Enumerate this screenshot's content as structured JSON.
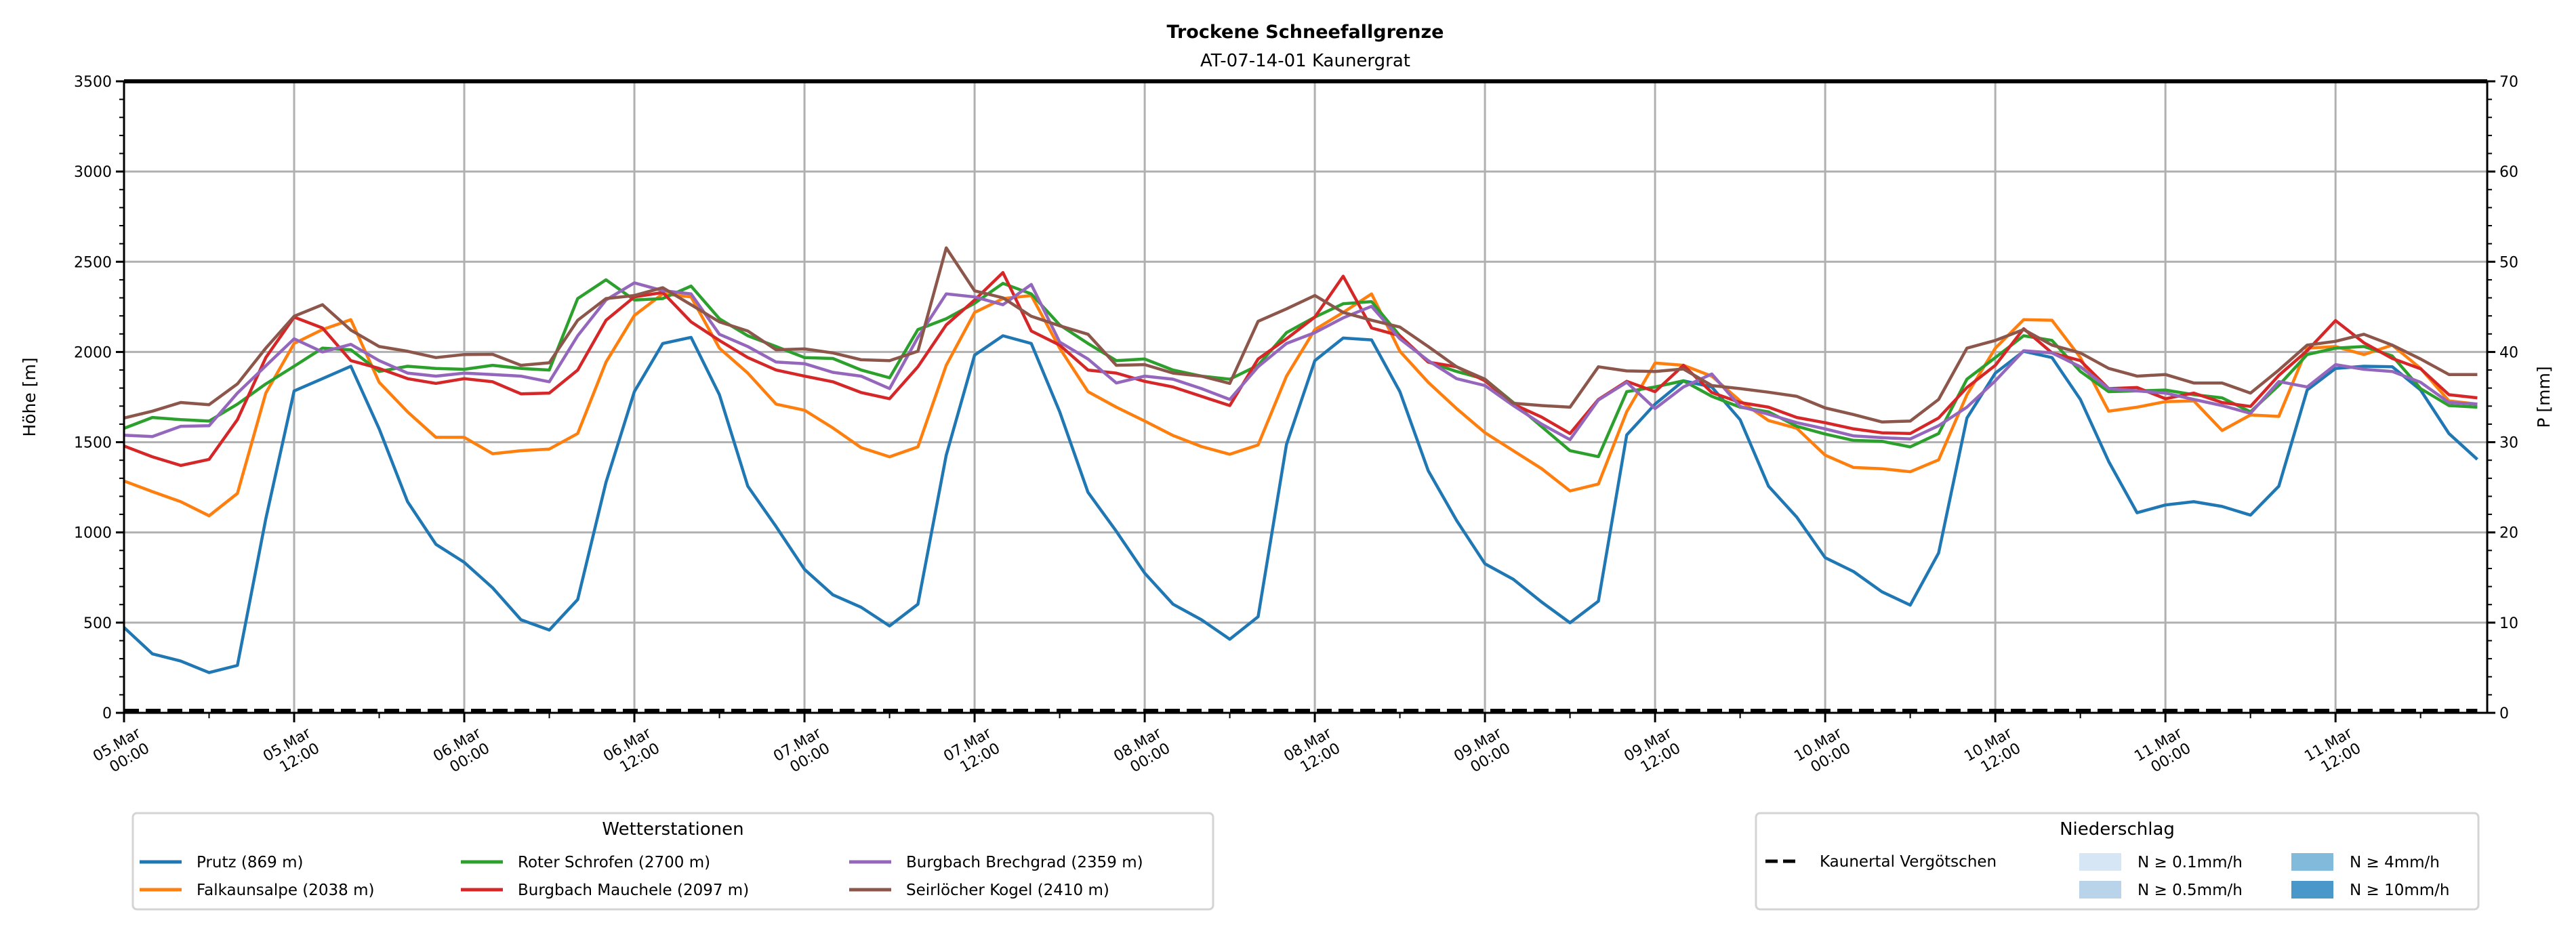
{
  "chart_data": {
    "type": "line",
    "title": "Trockene Schneefallgrenze",
    "subtitle": "AT-07-14-01 Kaunergrat",
    "ylabel": "Höhe [m]",
    "ylabel_right": "P [mm]",
    "ylim": [
      0,
      3500
    ],
    "ylim_right": [
      0,
      70
    ],
    "yticks": [
      0,
      500,
      1000,
      1500,
      2000,
      2500,
      3000,
      3500
    ],
    "yticks_right": [
      0,
      10,
      20,
      30,
      40,
      50,
      60,
      70
    ],
    "grid": true,
    "x_start": "05.Mar 00:00",
    "x_step_hours": 2,
    "x_range_hours": [
      0,
      167
    ],
    "xticks": [
      {
        "hour": 0,
        "date": "05.Mar",
        "time": "00:00"
      },
      {
        "hour": 12,
        "date": "05.Mar",
        "time": "12:00"
      },
      {
        "hour": 24,
        "date": "06.Mar",
        "time": "00:00"
      },
      {
        "hour": 36,
        "date": "06.Mar",
        "time": "12:00"
      },
      {
        "hour": 48,
        "date": "07.Mar",
        "time": "00:00"
      },
      {
        "hour": 60,
        "date": "07.Mar",
        "time": "12:00"
      },
      {
        "hour": 72,
        "date": "08.Mar",
        "time": "00:00"
      },
      {
        "hour": 84,
        "date": "08.Mar",
        "time": "12:00"
      },
      {
        "hour": 96,
        "date": "09.Mar",
        "time": "00:00"
      },
      {
        "hour": 108,
        "date": "09.Mar",
        "time": "12:00"
      },
      {
        "hour": 120,
        "date": "10.Mar",
        "time": "00:00"
      },
      {
        "hour": 132,
        "date": "10.Mar",
        "time": "12:00"
      },
      {
        "hour": 144,
        "date": "11.Mar",
        "time": "00:00"
      },
      {
        "hour": 156,
        "date": "11.Mar",
        "time": "12:00"
      }
    ],
    "series": [
      {
        "name": "Prutz (869 m)",
        "color": "#1f77b4",
        "values": [
          473,
          327,
          287,
          223,
          263,
          1075,
          1784,
          1852,
          1921,
          1574,
          1170,
          934,
          834,
          693,
          516,
          459,
          628,
          1278,
          1780,
          2047,
          2081,
          1763,
          1256,
          1032,
          795,
          654,
          585,
          482,
          602,
          1428,
          1983,
          2090,
          2047,
          1669,
          1222,
          1006,
          774,
          602,
          516,
          408,
          533,
          1488,
          1952,
          2077,
          2067,
          1780,
          1342,
          1066,
          826,
          740,
          614,
          499,
          619,
          1540,
          1711,
          1840,
          1806,
          1625,
          1256,
          1084,
          860,
          783,
          671,
          597,
          886,
          1634,
          1883,
          2004,
          1969,
          1737,
          1393,
          1109,
          1152,
          1170,
          1144,
          1096,
          1256,
          1789,
          1909,
          1921,
          1918,
          1789,
          1548,
          1405
        ]
      },
      {
        "name": "Falkaunsalpe (2038 m)",
        "color": "#ff7f0e",
        "values": [
          1285,
          1226,
          1170,
          1092,
          1216,
          1772,
          2047,
          2124,
          2179,
          1832,
          1668,
          1527,
          1527,
          1436,
          1453,
          1462,
          1548,
          1944,
          2202,
          2322,
          2305,
          2021,
          1883,
          1711,
          1677,
          1579,
          1470,
          1419,
          1474,
          1926,
          2219,
          2296,
          2313,
          2021,
          1780,
          1694,
          1617,
          1537,
          1476,
          1433,
          1485,
          1866,
          2124,
          2219,
          2322,
          2004,
          1832,
          1686,
          1553,
          1453,
          1353,
          1230,
          1268,
          1669,
          1939,
          1926,
          1866,
          1729,
          1620,
          1577,
          1428,
          1360,
          1353,
          1336,
          1402,
          1763,
          2021,
          2179,
          2176,
          1969,
          1672,
          1694,
          1725,
          1729,
          1565,
          1651,
          1643,
          2021,
          2030,
          1986,
          2038,
          1909,
          1729,
          1711
        ]
      },
      {
        "name": "Roter Schrofen (2700 m)",
        "color": "#2ca02c",
        "values": [
          1577,
          1637,
          1625,
          1617,
          1711,
          1823,
          1921,
          2021,
          2012,
          1892,
          1921,
          1909,
          1904,
          1926,
          1909,
          1900,
          2296,
          2400,
          2288,
          2296,
          2365,
          2184,
          2090,
          2030,
          1969,
          1964,
          1900,
          1857,
          2124,
          2184,
          2270,
          2380,
          2322,
          2150,
          2047,
          1952,
          1961,
          1900,
          1866,
          1849,
          1926,
          2107,
          2193,
          2267,
          2279,
          2090,
          1944,
          1892,
          1849,
          1720,
          1586,
          1453,
          1420,
          1780,
          1806,
          1840,
          1754,
          1694,
          1668,
          1588,
          1545,
          1510,
          1505,
          1474,
          1548,
          1849,
          1969,
          2090,
          2064,
          1892,
          1780,
          1784,
          1789,
          1763,
          1746,
          1668,
          1815,
          1986,
          2021,
          2030,
          1978,
          1797,
          1703,
          1694
        ]
      },
      {
        "name": "Burgbach Mauchele (2097 m)",
        "color": "#d62728",
        "values": [
          1479,
          1419,
          1371,
          1405,
          1625,
          1969,
          2193,
          2133,
          1952,
          1909,
          1852,
          1826,
          1852,
          1835,
          1768,
          1772,
          1900,
          2176,
          2305,
          2330,
          2167,
          2064,
          1969,
          1900,
          1866,
          1835,
          1775,
          1741,
          1918,
          2150,
          2288,
          2440,
          2116,
          2038,
          1900,
          1883,
          1837,
          1806,
          1754,
          1703,
          1961,
          2073,
          2193,
          2420,
          2133,
          2090,
          1944,
          1918,
          1840,
          1711,
          1639,
          1548,
          1737,
          1837,
          1780,
          1926,
          1775,
          1720,
          1694,
          1637,
          1608,
          1574,
          1552,
          1548,
          1634,
          1803,
          1926,
          2129,
          1995,
          1952,
          1797,
          1803,
          1741,
          1772,
          1720,
          1698,
          1870,
          2007,
          2174,
          2051,
          1964,
          1907,
          1763,
          1746
        ]
      },
      {
        "name": "Burgbach Brechgrad (2359 m)",
        "color": "#9467bd",
        "values": [
          1539,
          1531,
          1588,
          1591,
          1772,
          1923,
          2073,
          2000,
          2042,
          1952,
          1883,
          1866,
          1883,
          1875,
          1866,
          1835,
          2090,
          2288,
          2383,
          2340,
          2322,
          2098,
          2030,
          1944,
          1935,
          1887,
          1866,
          1797,
          2081,
          2322,
          2305,
          2262,
          2374,
          2055,
          1961,
          1828,
          1866,
          1849,
          1797,
          1737,
          1918,
          2047,
          2107,
          2189,
          2253,
          2073,
          1952,
          1852,
          1814,
          1703,
          1600,
          1514,
          1734,
          1832,
          1686,
          1806,
          1878,
          1698,
          1655,
          1608,
          1574,
          1535,
          1525,
          1518,
          1591,
          1694,
          1840,
          2007,
          1995,
          1918,
          1797,
          1784,
          1772,
          1737,
          1703,
          1660,
          1836,
          1806,
          1930,
          1904,
          1892,
          1832,
          1720,
          1711
        ]
      },
      {
        "name": "Seirlöcher Kogel (2410 m)",
        "color": "#8c564b",
        "values": [
          1634,
          1672,
          1720,
          1708,
          1823,
          2021,
          2198,
          2262,
          2121,
          2030,
          2004,
          1969,
          1986,
          1987,
          1926,
          1940,
          2176,
          2296,
          2313,
          2356,
          2262,
          2167,
          2116,
          2012,
          2017,
          1995,
          1957,
          1952,
          2004,
          2577,
          2339,
          2300,
          2198,
          2145,
          2098,
          1926,
          1930,
          1883,
          1866,
          1826,
          2170,
          2239,
          2313,
          2219,
          2176,
          2138,
          2030,
          1918,
          1849,
          1716,
          1703,
          1694,
          1918,
          1895,
          1892,
          1906,
          1814,
          1797,
          1777,
          1754,
          1690,
          1653,
          1612,
          1617,
          1737,
          2021,
          2064,
          2124,
          2038,
          1995,
          1909,
          1866,
          1875,
          1828,
          1828,
          1772,
          1900,
          2038,
          2059,
          2098,
          2038,
          1961,
          1875,
          1875
        ]
      }
    ],
    "precip_series": [
      {
        "name": "Kaunertal Vergötschen",
        "style": "dashed",
        "color": "#000000",
        "values": [
          0,
          0,
          0,
          0,
          0,
          0,
          0,
          0,
          0,
          0,
          0,
          0,
          0,
          0,
          0,
          0,
          0,
          0,
          0,
          0,
          0,
          0,
          0,
          0,
          0,
          0,
          0,
          0,
          0,
          0,
          0,
          0,
          0,
          0,
          0,
          0,
          0,
          0,
          0,
          0,
          0,
          0,
          0,
          0,
          0,
          0,
          0,
          0,
          0,
          0,
          0,
          0,
          0,
          0,
          0,
          0,
          0,
          0,
          0,
          0,
          0,
          0,
          0,
          0,
          0,
          0,
          0,
          0,
          0,
          0,
          0,
          0,
          0,
          0,
          0,
          0,
          0,
          0,
          0,
          0,
          0,
          0,
          0,
          0
        ]
      }
    ],
    "legend_stations": {
      "title": "Wetterstationen",
      "placement": "bottom-left"
    },
    "legend_precip": {
      "title": "Niederschlag",
      "placement": "bottom-right",
      "classes": [
        {
          "label": "N ≥ 0.1mm/h",
          "color": "#d6e6f4"
        },
        {
          "label": "N ≥ 0.5mm/h",
          "color": "#b9d4ea"
        },
        {
          "label": "N ≥ 4mm/h",
          "color": "#82badb"
        },
        {
          "label": "N ≥ 10mm/h",
          "color": "#4a98c9"
        }
      ]
    }
  }
}
